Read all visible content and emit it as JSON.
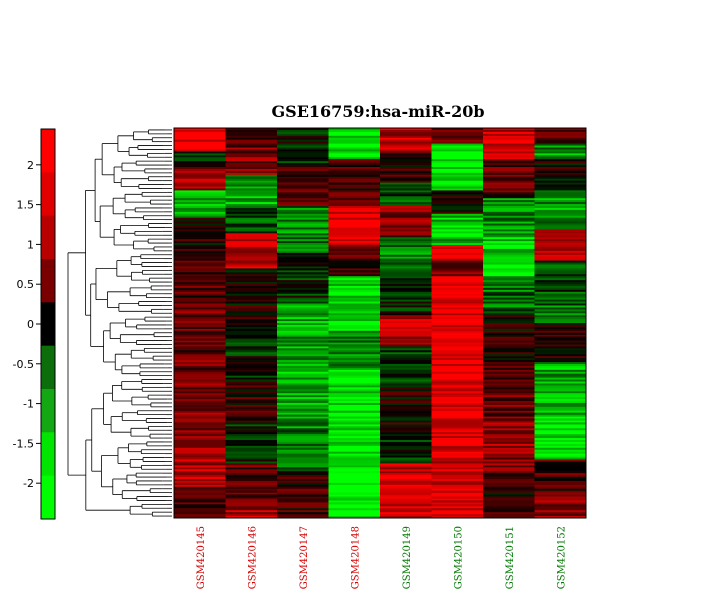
{
  "chart_data": {
    "type": "heatmap",
    "title": "GSE16759:hsa-miR-20b",
    "columns": [
      {
        "label": "GSM420145",
        "color": "#d40000"
      },
      {
        "label": "GSM420146",
        "color": "#d40000"
      },
      {
        "label": "GSM420147",
        "color": "#d40000"
      },
      {
        "label": "GSM420148",
        "color": "#d40000"
      },
      {
        "label": "GSM420149",
        "color": "#007a00"
      },
      {
        "label": "GSM420150",
        "color": "#007a00"
      },
      {
        "label": "GSM420151",
        "color": "#007a00"
      },
      {
        "label": "GSM420152",
        "color": "#007a00"
      }
    ],
    "colorbar": {
      "ticks": [
        2,
        1.5,
        1,
        0.5,
        0,
        -0.5,
        -1,
        -1.5,
        -2
      ],
      "range": [
        -2.45,
        2.45
      ],
      "colors": [
        "#ff0000",
        "#e00000",
        "#b80000",
        "#7a0000",
        "#000000",
        "#0b6e0b",
        "#13a813",
        "#00e600",
        "#00ff00"
      ]
    },
    "row_count": 200,
    "column_blocks": [
      [
        [
          0,
          2.2
        ],
        [
          0.06,
          -0.4
        ],
        [
          0.1,
          1.5
        ],
        [
          0.16,
          -1.8
        ],
        [
          0.23,
          0.3
        ],
        [
          0.3,
          0.7
        ],
        [
          0.45,
          0.9
        ],
        [
          0.6,
          1.1
        ],
        [
          0.78,
          1.6
        ],
        [
          0.92,
          0.8
        ]
      ],
      [
        [
          0,
          0.5
        ],
        [
          0.05,
          1.2
        ],
        [
          0.12,
          -1.6
        ],
        [
          0.2,
          -0.8
        ],
        [
          0.27,
          1.8
        ],
        [
          0.36,
          0.2
        ],
        [
          0.5,
          -0.3
        ],
        [
          0.65,
          0.4
        ],
        [
          0.76,
          -0.2
        ],
        [
          0.86,
          0.9
        ],
        [
          0.95,
          1.6
        ]
      ],
      [
        [
          0,
          -0.2
        ],
        [
          0.1,
          0.6
        ],
        [
          0.2,
          -1.2
        ],
        [
          0.32,
          -0.3
        ],
        [
          0.45,
          -1.5
        ],
        [
          0.6,
          -1.6
        ],
        [
          0.75,
          -1.2
        ],
        [
          0.88,
          0.5
        ]
      ],
      [
        [
          0,
          -2.3
        ],
        [
          0.08,
          0.5
        ],
        [
          0.16,
          1.2
        ],
        [
          0.2,
          2.3
        ],
        [
          0.3,
          0.6
        ],
        [
          0.38,
          -2.2
        ],
        [
          0.52,
          -1.1
        ],
        [
          0.62,
          -2.2
        ],
        [
          0.86,
          -2.4
        ]
      ],
      [
        [
          0,
          1.8
        ],
        [
          0.06,
          0.4
        ],
        [
          0.14,
          -0.6
        ],
        [
          0.2,
          1.2
        ],
        [
          0.28,
          -1.2
        ],
        [
          0.36,
          -0.2
        ],
        [
          0.48,
          1.6
        ],
        [
          0.56,
          -0.6
        ],
        [
          0.66,
          0.2
        ],
        [
          0.78,
          -0.3
        ],
        [
          0.86,
          2.0
        ]
      ],
      [
        [
          0,
          0.9
        ],
        [
          0.04,
          -2.3
        ],
        [
          0.16,
          0.2
        ],
        [
          0.22,
          -1.8
        ],
        [
          0.3,
          2.4
        ],
        [
          0.34,
          1.0
        ],
        [
          0.38,
          2.3
        ],
        [
          0.82,
          2.0
        ],
        [
          0.92,
          2.2
        ]
      ],
      [
        [
          0,
          1.9
        ],
        [
          0.08,
          0.9
        ],
        [
          0.18,
          -1.2
        ],
        [
          0.28,
          -2.0
        ],
        [
          0.38,
          -1.0
        ],
        [
          0.48,
          0.2
        ],
        [
          0.6,
          0.9
        ],
        [
          0.75,
          1.4
        ],
        [
          0.88,
          0.4
        ]
      ],
      [
        [
          0,
          0.8
        ],
        [
          0.04,
          -1.4
        ],
        [
          0.08,
          0.2
        ],
        [
          0.16,
          -1.5
        ],
        [
          0.26,
          1.6
        ],
        [
          0.34,
          -0.5
        ],
        [
          0.42,
          -1.0
        ],
        [
          0.5,
          0.3
        ],
        [
          0.6,
          -1.6
        ],
        [
          0.74,
          -2.2
        ],
        [
          0.85,
          0.6
        ],
        [
          0.94,
          1.2
        ]
      ]
    ]
  }
}
